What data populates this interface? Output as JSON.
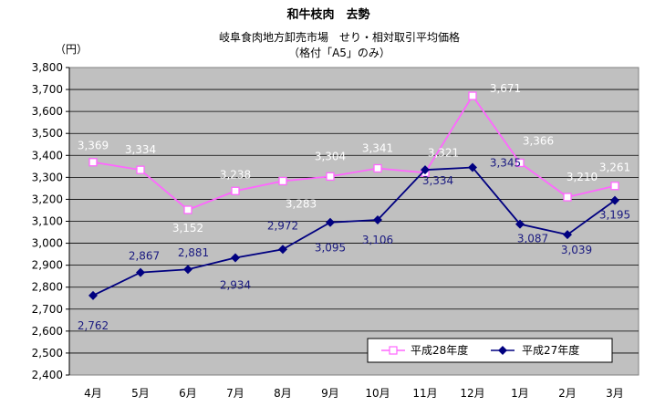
{
  "chart_data": {
    "type": "line",
    "title": "和牛枝肉　去勢",
    "subtitle_lines": [
      "岐阜食肉地方卸売市場　せり・相対取引平均価格",
      "（格付「A5」のみ）"
    ],
    "y_unit_label": "（円）",
    "categories": [
      "4月",
      "5月",
      "6月",
      "7月",
      "8月",
      "9月",
      "10月",
      "11月",
      "12月",
      "1月",
      "2月",
      "3月"
    ],
    "ylim": [
      2400,
      3800
    ],
    "ytick_step": 100,
    "ytick_labels": [
      "2,400",
      "2,500",
      "2,600",
      "2,700",
      "2,800",
      "2,900",
      "3,000",
      "3,100",
      "3,200",
      "3,300",
      "3,400",
      "3,500",
      "3,600",
      "3,700",
      "3,800"
    ],
    "grid": true,
    "legend_position": "bottom-right",
    "series": [
      {
        "name": "平成28年度",
        "color": "#ff66ff",
        "marker": "open-square",
        "values": [
          3369,
          3334,
          3152,
          3238,
          3283,
          3304,
          3341,
          3321,
          3671,
          3366,
          3210,
          3261
        ],
        "labels": [
          "3,369",
          "3,334",
          "3,152",
          "3,238",
          "3,283",
          "3,304",
          "3,341",
          "3,321",
          "3,671",
          "3,366",
          "3,210",
          "3,261"
        ]
      },
      {
        "name": "平成27年度",
        "color": "#000080",
        "marker": "diamond",
        "values": [
          2762,
          2867,
          2881,
          2934,
          2972,
          3095,
          3106,
          3334,
          3345,
          3087,
          3039,
          3195
        ],
        "labels": [
          "2,762",
          "2,867",
          "2,881",
          "2,934",
          "2,972",
          "3,095",
          "3,106",
          "3,334",
          "3,345",
          "3,087",
          "3,039",
          "3,195"
        ]
      }
    ]
  }
}
